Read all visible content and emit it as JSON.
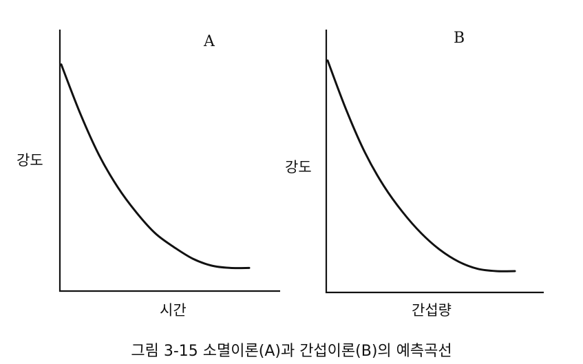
{
  "figure": {
    "caption": "그림 3-15 소멸이론(A)과 간섭이론(B)의 예측곡선"
  },
  "chart_data": [
    {
      "type": "line",
      "title": "A",
      "xlabel": "시간",
      "ylabel": "강도",
      "xlim": [
        0,
        1
      ],
      "ylim": [
        0,
        1
      ],
      "grid": false,
      "legend": "none",
      "series": [
        {
          "x": [
            0,
            0.1,
            0.2,
            0.3,
            0.4,
            0.5,
            0.6,
            0.7,
            0.8,
            0.9,
            1.0
          ],
          "y": [
            0.98,
            0.77,
            0.59,
            0.45,
            0.34,
            0.25,
            0.19,
            0.14,
            0.11,
            0.1,
            0.1
          ]
        }
      ]
    },
    {
      "type": "line",
      "title": "B",
      "xlabel": "간섭량",
      "ylabel": "강도",
      "xlim": [
        0,
        1
      ],
      "ylim": [
        0,
        1
      ],
      "grid": false,
      "legend": "none",
      "series": [
        {
          "x": [
            0,
            0.1,
            0.2,
            0.3,
            0.4,
            0.5,
            0.6,
            0.7,
            0.8,
            0.9,
            1.0
          ],
          "y": [
            0.98,
            0.77,
            0.59,
            0.45,
            0.34,
            0.25,
            0.18,
            0.13,
            0.1,
            0.09,
            0.09
          ]
        }
      ]
    }
  ]
}
